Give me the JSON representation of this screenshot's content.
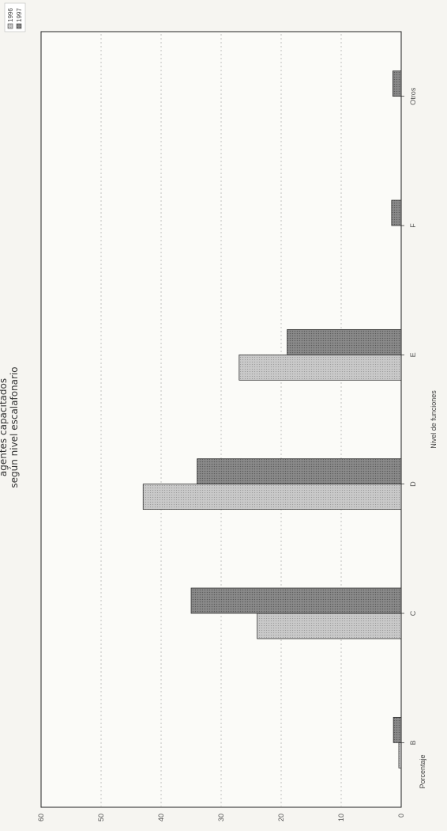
{
  "chart_data": {
    "type": "bar",
    "title_lines": [
      "según nivel escalafonario",
      "agentes capacitados"
    ],
    "xlabel": "Nivel de funciones",
    "ylabel": "Porcentaje",
    "categories": [
      "B",
      "C",
      "D",
      "E",
      "F",
      "Otros"
    ],
    "series": [
      {
        "name": "1996",
        "values": [
          0.4,
          24,
          43,
          27,
          0,
          0
        ],
        "color": "#bdbdbd"
      },
      {
        "name": "1997",
        "values": [
          1.3,
          35,
          34,
          19,
          1.6,
          1.4
        ],
        "color": "#7a7a7a"
      }
    ],
    "ylim": [
      0,
      60
    ],
    "yticks": [
      "0",
      "10",
      "20",
      "30",
      "40",
      "50",
      "60"
    ],
    "grid": true,
    "legend_position": "top-right"
  }
}
